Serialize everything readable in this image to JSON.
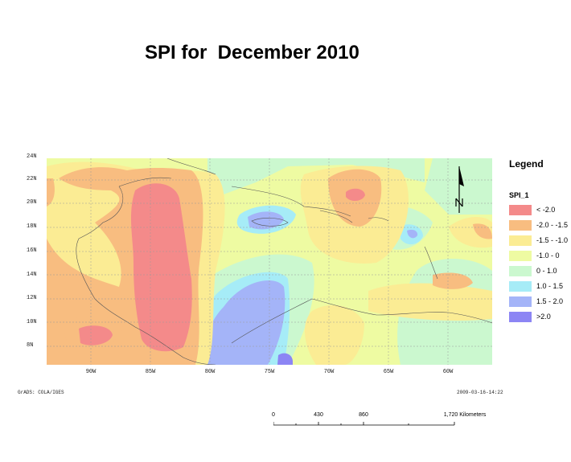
{
  "title": "SPI for  December 2010",
  "map": {
    "lat_labels": [
      "24N",
      "22N",
      "20N",
      "18N",
      "16N",
      "14N",
      "12N",
      "10N",
      "8N"
    ],
    "lon_labels": [
      "90W",
      "85W",
      "80W",
      "75W",
      "70W",
      "65W",
      "60W"
    ],
    "footer_left": "GrADS: COLA/IGES",
    "footer_right": "2009-03-16-14:22",
    "north_arrow": "N"
  },
  "legend": {
    "title": "Legend",
    "field": "SPI_1",
    "items": [
      {
        "label": "< -2.0",
        "color": "#f48a8a"
      },
      {
        "label": "-2.0 - -1.5",
        "color": "#f8bd80"
      },
      {
        "label": "-1.5 -  -1.0",
        "color": "#fbec94"
      },
      {
        "label": "-1.0 - 0",
        "color": "#eefba2"
      },
      {
        "label": "0 - 1.0",
        "color": "#cbf8cf"
      },
      {
        "label": "1.0 - 1.5",
        "color": "#a6ecf7"
      },
      {
        "label": "1.5 - 2.0",
        "color": "#a4b4f8"
      },
      {
        "label": ">2.0",
        "color": "#8c85f4"
      }
    ]
  },
  "scale_bar": {
    "ticks": [
      "0",
      "430",
      "860",
      "1,720 Kilometers"
    ]
  }
}
